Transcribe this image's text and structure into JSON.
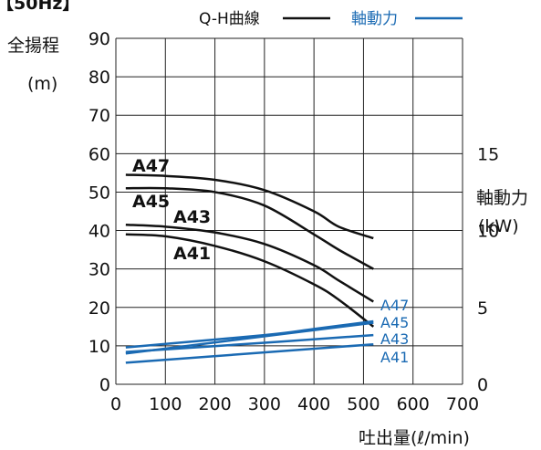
{
  "chart_data": {
    "type": "line",
    "title": "【50Hz】",
    "legend": {
      "qh": "Q-H曲線",
      "power": "軸動力",
      "placement": "top-right"
    },
    "xlabel": "吐出量(ℓ/min)",
    "ylabel_left": [
      "全揚程",
      "(m)"
    ],
    "ylabel_right": [
      "軸動力",
      "(kW)"
    ],
    "xlim": [
      0,
      700
    ],
    "ylim_left": [
      0,
      90
    ],
    "ylim_right": [
      0,
      22.5
    ],
    "x_ticks": [
      "0",
      "100",
      "200",
      "300",
      "400",
      "500",
      "600",
      "700"
    ],
    "y_left_ticks": [
      "0",
      "10",
      "20",
      "30",
      "40",
      "50",
      "60",
      "70",
      "80",
      "90"
    ],
    "y_right_ticks": [
      "0",
      "5",
      "10",
      "15"
    ],
    "grid": true,
    "colors": {
      "qh": "#111111",
      "power": "#1a6ab3",
      "grid": "#222222"
    },
    "qh_series": [
      {
        "name": "A47",
        "x": [
          20,
          100,
          200,
          300,
          400,
          450,
          520
        ],
        "y": [
          54.5,
          54.2,
          53.2,
          50.5,
          45,
          41,
          38
        ]
      },
      {
        "name": "A45",
        "x": [
          20,
          100,
          200,
          300,
          400,
          450,
          520
        ],
        "y": [
          51,
          51,
          50,
          46.5,
          39,
          35,
          30
        ]
      },
      {
        "name": "A43",
        "x": [
          20,
          100,
          200,
          300,
          400,
          450,
          520
        ],
        "y": [
          41.5,
          41,
          39.5,
          36.5,
          31,
          27,
          21.5
        ]
      },
      {
        "name": "A41",
        "x": [
          20,
          100,
          200,
          300,
          400,
          450,
          520
        ],
        "y": [
          39,
          38.5,
          36,
          32,
          26,
          22,
          15
        ]
      }
    ],
    "power_series": [
      {
        "name": "A47",
        "x": [
          20,
          520
        ],
        "y": [
          2.0,
          4.0
        ]
      },
      {
        "name": "A45",
        "x": [
          20,
          300,
          400,
          520
        ],
        "y": [
          2.4,
          3.2,
          3.6,
          4.1
        ]
      },
      {
        "name": "A43",
        "x": [
          20,
          300,
          520
        ],
        "y": [
          2.1,
          2.7,
          3.2
        ]
      },
      {
        "name": "A41",
        "x": [
          20,
          520
        ],
        "y": [
          1.4,
          2.6
        ]
      }
    ]
  }
}
